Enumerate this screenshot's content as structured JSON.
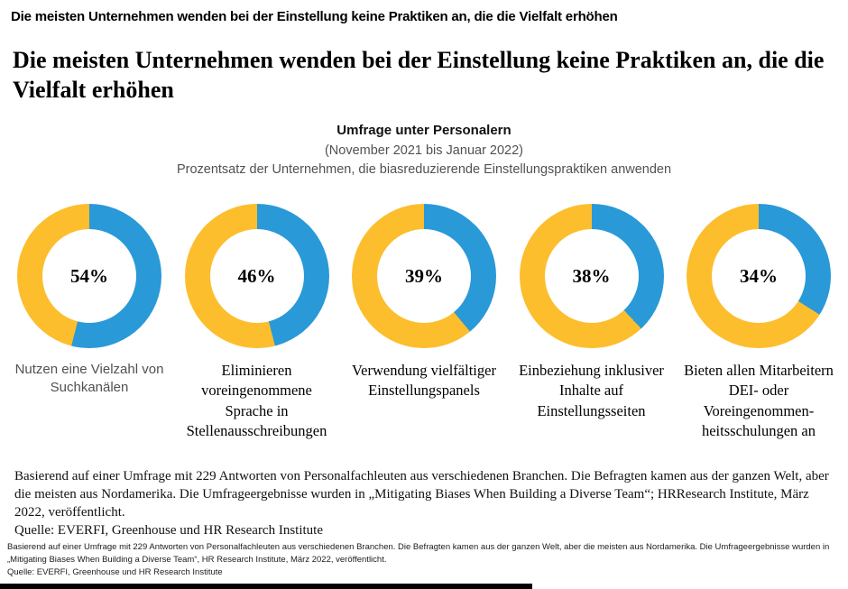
{
  "page": {
    "top_title": "Die meisten Unternehmen wenden bei der Einstellung keine Praktiken an, die die Vielfalt erhöhen",
    "main_title": "Die meisten Unternehmen wenden bei der Einstellung keine Praktiken an, die die Vielfalt erhöhen",
    "subtitle": {
      "heading": "Umfrage unter Personalern",
      "period": "(November 2021 bis Januar 2022)",
      "description": "Prozentsatz der Unternehmen, die biasreduzierende Einstellungspraktiken anwenden"
    },
    "footnote_serif": {
      "body": "Basierend auf einer Umfrage mit 229 Antworten von Personalfachleuten aus verschiedenen Branchen. Die Befragten kamen aus der ganzen Welt, aber die meisten aus Nordamerika. Die Umfrageergebnisse wurden in „Mitigating Biases When Building a Diverse Team“; HRResearch Institute, März 2022, veröffentlicht.",
      "source": "Quelle: EVERFI, Greenhouse und HR Research Institute"
    },
    "footnote_small": {
      "body": "Basierend auf einer Umfrage mit 229 Antworten von Personalfachleuten aus verschiedenen Branchen. Die Befragten kamen aus der ganzen Welt, aber die meisten aus Nordamerika. Die Umfrageergebnisse wurden in „Mitigating Biases When Building a Diverse Team“, HR Research Institute, März 2022, veröffentlicht.",
      "source": "Quelle: EVERFI, Greenhouse und HR Research Institute"
    }
  },
  "chart_data": {
    "type": "pie",
    "variant": "donut",
    "title": "Umfrage unter Personalern",
    "subtitle": "(November 2021 bis Januar 2022)",
    "description": "Prozentsatz der Unternehmen, die biasreduzierende Einstellungspraktiken anwenden",
    "legend_position": "none",
    "colors": {
      "value_segment": "#2999D8",
      "remainder_segment": "#FCBE2D"
    },
    "items": [
      {
        "label": "Nutzen eine Vielzahl von Suchkanälen",
        "value": 54,
        "display": "54%"
      },
      {
        "label": "Eliminieren voreingenommene Sprache in Stellenausschreibungen",
        "value": 46,
        "display": "46%"
      },
      {
        "label": "Verwendung vielfältiger Einstellungspanels",
        "value": 39,
        "display": "39%"
      },
      {
        "label": "Einbeziehung inklusiver Inhalte auf Einstellungsseiten",
        "value": 38,
        "display": "38%"
      },
      {
        "label": "Bieten allen Mitarbeitern DEI- oder Voreingenommen&shy;heitsschulungen an",
        "value": 34,
        "display": "34%"
      }
    ]
  }
}
